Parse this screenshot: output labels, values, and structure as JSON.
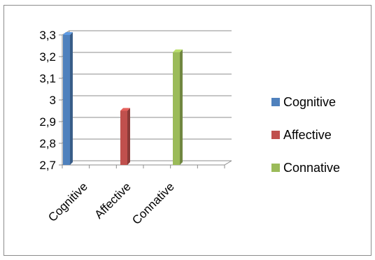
{
  "chart_data": {
    "type": "bar",
    "style": "3d-column",
    "categories": [
      "Cognitive",
      "Affective",
      "Connative"
    ],
    "values": [
      3.3,
      2.95,
      3.22
    ],
    "colors": [
      "#4f81bd",
      "#c0504d",
      "#9bbb59"
    ],
    "ylim": [
      2.7,
      3.3
    ],
    "y_ticks": [
      "2,7",
      "2,8",
      "2,9",
      "3",
      "3,1",
      "3,2",
      "3,3"
    ],
    "grid": true,
    "legend": {
      "position": "right",
      "entries": [
        "Cognitive",
        "Affective",
        "Connative"
      ]
    }
  }
}
